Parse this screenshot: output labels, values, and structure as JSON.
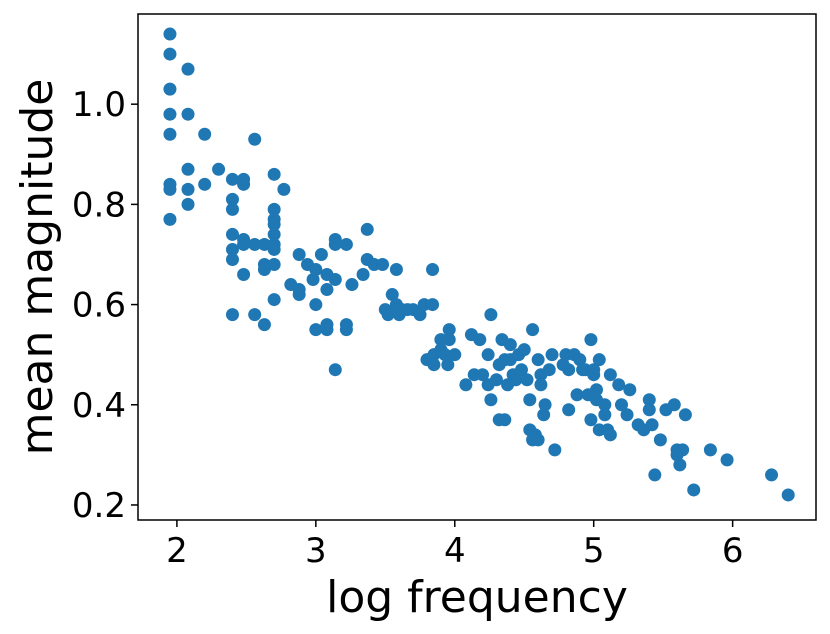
{
  "chart_data": {
    "type": "scatter",
    "title": "",
    "xlabel": "log frequency",
    "ylabel": "mean magnitude",
    "xlim": [
      1.72,
      6.6
    ],
    "ylim": [
      0.17,
      1.18
    ],
    "x_ticks": [
      2,
      3,
      4,
      5,
      6
    ],
    "x_tick_labels": [
      "2",
      "3",
      "4",
      "5",
      "6"
    ],
    "y_ticks": [
      0.2,
      0.4,
      0.6,
      0.8,
      1.0
    ],
    "y_tick_labels": [
      "0.2",
      "0.4",
      "0.6",
      "0.8",
      "1.0"
    ],
    "grid": false,
    "legend": "none",
    "marker_color": "#1f77b4",
    "series": [
      {
        "points": [
          [
            1.95,
            1.14
          ],
          [
            1.95,
            1.1
          ],
          [
            1.95,
            1.03
          ],
          [
            1.95,
            0.98
          ],
          [
            1.95,
            0.94
          ],
          [
            1.95,
            0.84
          ],
          [
            1.95,
            0.83
          ],
          [
            1.95,
            0.77
          ],
          [
            2.08,
            1.07
          ],
          [
            2.08,
            0.98
          ],
          [
            2.08,
            0.87
          ],
          [
            2.08,
            0.83
          ],
          [
            2.08,
            0.8
          ],
          [
            2.2,
            0.94
          ],
          [
            2.2,
            0.84
          ],
          [
            2.3,
            0.87
          ],
          [
            2.4,
            0.85
          ],
          [
            2.4,
            0.81
          ],
          [
            2.4,
            0.79
          ],
          [
            2.4,
            0.74
          ],
          [
            2.4,
            0.71
          ],
          [
            2.4,
            0.69
          ],
          [
            2.4,
            0.58
          ],
          [
            2.48,
            0.85
          ],
          [
            2.48,
            0.84
          ],
          [
            2.48,
            0.73
          ],
          [
            2.48,
            0.72
          ],
          [
            2.48,
            0.66
          ],
          [
            2.56,
            0.93
          ],
          [
            2.56,
            0.72
          ],
          [
            2.56,
            0.58
          ],
          [
            2.63,
            0.72
          ],
          [
            2.63,
            0.68
          ],
          [
            2.63,
            0.67
          ],
          [
            2.63,
            0.56
          ],
          [
            2.7,
            0.86
          ],
          [
            2.7,
            0.79
          ],
          [
            2.7,
            0.77
          ],
          [
            2.7,
            0.76
          ],
          [
            2.7,
            0.74
          ],
          [
            2.7,
            0.72
          ],
          [
            2.7,
            0.71
          ],
          [
            2.7,
            0.68
          ],
          [
            2.7,
            0.61
          ],
          [
            2.77,
            0.83
          ],
          [
            2.82,
            0.64
          ],
          [
            2.88,
            0.7
          ],
          [
            2.88,
            0.63
          ],
          [
            2.88,
            0.62
          ],
          [
            2.94,
            0.68
          ],
          [
            2.98,
            0.65
          ],
          [
            3.0,
            0.67
          ],
          [
            3.0,
            0.6
          ],
          [
            3.0,
            0.55
          ],
          [
            3.04,
            0.7
          ],
          [
            3.08,
            0.66
          ],
          [
            3.08,
            0.63
          ],
          [
            3.08,
            0.56
          ],
          [
            3.08,
            0.55
          ],
          [
            3.14,
            0.73
          ],
          [
            3.14,
            0.72
          ],
          [
            3.14,
            0.65
          ],
          [
            3.14,
            0.47
          ],
          [
            3.22,
            0.72
          ],
          [
            3.22,
            0.56
          ],
          [
            3.22,
            0.55
          ],
          [
            3.26,
            0.64
          ],
          [
            3.34,
            0.66
          ],
          [
            3.37,
            0.75
          ],
          [
            3.37,
            0.69
          ],
          [
            3.42,
            0.68
          ],
          [
            3.48,
            0.68
          ],
          [
            3.5,
            0.59
          ],
          [
            3.52,
            0.58
          ],
          [
            3.55,
            0.62
          ],
          [
            3.58,
            0.67
          ],
          [
            3.58,
            0.6
          ],
          [
            3.58,
            0.59
          ],
          [
            3.6,
            0.58
          ],
          [
            3.62,
            0.59
          ],
          [
            3.66,
            0.59
          ],
          [
            3.7,
            0.59
          ],
          [
            3.75,
            0.58
          ],
          [
            3.78,
            0.6
          ],
          [
            3.8,
            0.49
          ],
          [
            3.84,
            0.67
          ],
          [
            3.84,
            0.6
          ],
          [
            3.85,
            0.5
          ],
          [
            3.85,
            0.48
          ],
          [
            3.9,
            0.53
          ],
          [
            3.9,
            0.51
          ],
          [
            3.93,
            0.5
          ],
          [
            3.95,
            0.48
          ],
          [
            3.96,
            0.55
          ],
          [
            3.96,
            0.53
          ],
          [
            4.0,
            0.5
          ],
          [
            4.08,
            0.44
          ],
          [
            4.12,
            0.54
          ],
          [
            4.14,
            0.46
          ],
          [
            4.18,
            0.53
          ],
          [
            4.2,
            0.46
          ],
          [
            4.24,
            0.44
          ],
          [
            4.24,
            0.5
          ],
          [
            4.26,
            0.58
          ],
          [
            4.26,
            0.41
          ],
          [
            4.3,
            0.45
          ],
          [
            4.32,
            0.48
          ],
          [
            4.32,
            0.37
          ],
          [
            4.34,
            0.53
          ],
          [
            4.36,
            0.37
          ],
          [
            4.36,
            0.49
          ],
          [
            4.38,
            0.44
          ],
          [
            4.4,
            0.52
          ],
          [
            4.4,
            0.49
          ],
          [
            4.42,
            0.46
          ],
          [
            4.44,
            0.45
          ],
          [
            4.46,
            0.5
          ],
          [
            4.48,
            0.47
          ],
          [
            4.5,
            0.51
          ],
          [
            4.52,
            0.45
          ],
          [
            4.54,
            0.35
          ],
          [
            4.54,
            0.41
          ],
          [
            4.56,
            0.55
          ],
          [
            4.56,
            0.33
          ],
          [
            4.58,
            0.34
          ],
          [
            4.6,
            0.49
          ],
          [
            4.6,
            0.33
          ],
          [
            4.62,
            0.46
          ],
          [
            4.62,
            0.44
          ],
          [
            4.64,
            0.38
          ],
          [
            4.65,
            0.4
          ],
          [
            4.68,
            0.47
          ],
          [
            4.7,
            0.5
          ],
          [
            4.72,
            0.31
          ],
          [
            4.78,
            0.48
          ],
          [
            4.8,
            0.5
          ],
          [
            4.82,
            0.39
          ],
          [
            4.82,
            0.47
          ],
          [
            4.86,
            0.5
          ],
          [
            4.88,
            0.42
          ],
          [
            4.9,
            0.49
          ],
          [
            4.92,
            0.47
          ],
          [
            4.94,
            0.47
          ],
          [
            4.96,
            0.42
          ],
          [
            4.98,
            0.53
          ],
          [
            4.98,
            0.37
          ],
          [
            5.0,
            0.47
          ],
          [
            5.0,
            0.46
          ],
          [
            5.02,
            0.43
          ],
          [
            5.02,
            0.41
          ],
          [
            5.04,
            0.49
          ],
          [
            5.04,
            0.35
          ],
          [
            5.08,
            0.4
          ],
          [
            5.08,
            0.38
          ],
          [
            5.1,
            0.35
          ],
          [
            5.12,
            0.46
          ],
          [
            5.12,
            0.34
          ],
          [
            5.18,
            0.44
          ],
          [
            5.2,
            0.4
          ],
          [
            5.24,
            0.38
          ],
          [
            5.26,
            0.43
          ],
          [
            5.32,
            0.36
          ],
          [
            5.36,
            0.35
          ],
          [
            5.4,
            0.41
          ],
          [
            5.4,
            0.39
          ],
          [
            5.42,
            0.36
          ],
          [
            5.44,
            0.26
          ],
          [
            5.48,
            0.33
          ],
          [
            5.52,
            0.39
          ],
          [
            5.58,
            0.4
          ],
          [
            5.6,
            0.31
          ],
          [
            5.6,
            0.3
          ],
          [
            5.62,
            0.28
          ],
          [
            5.64,
            0.31
          ],
          [
            5.66,
            0.38
          ],
          [
            5.72,
            0.23
          ],
          [
            5.84,
            0.31
          ],
          [
            5.96,
            0.29
          ],
          [
            6.28,
            0.26
          ],
          [
            6.4,
            0.22
          ]
        ]
      }
    ]
  }
}
